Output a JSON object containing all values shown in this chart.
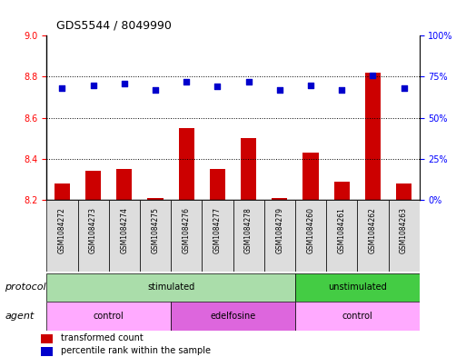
{
  "title": "GDS5544 / 8049990",
  "samples": [
    "GSM1084272",
    "GSM1084273",
    "GSM1084274",
    "GSM1084275",
    "GSM1084276",
    "GSM1084277",
    "GSM1084278",
    "GSM1084279",
    "GSM1084260",
    "GSM1084261",
    "GSM1084262",
    "GSM1084263"
  ],
  "bar_values": [
    8.28,
    8.34,
    8.35,
    8.21,
    8.55,
    8.35,
    8.5,
    8.21,
    8.43,
    8.29,
    8.82,
    8.28
  ],
  "scatter_values": [
    68,
    70,
    71,
    67,
    72,
    69,
    72,
    67,
    70,
    67,
    76,
    68
  ],
  "ylim_left": [
    8.2,
    9.0
  ],
  "ylim_right": [
    0,
    100
  ],
  "yticks_left": [
    8.2,
    8.4,
    8.6,
    8.8,
    9.0
  ],
  "yticks_right": [
    0,
    25,
    50,
    75,
    100
  ],
  "ytick_labels_right": [
    "0%",
    "25%",
    "50%",
    "75%",
    "100%"
  ],
  "bar_color": "#cc0000",
  "scatter_color": "#0000cc",
  "bar_bottom": 8.2,
  "protocol_labels": [
    {
      "label": "stimulated",
      "start": 0,
      "end": 8,
      "color": "#aaddaa"
    },
    {
      "label": "unstimulated",
      "start": 8,
      "end": 12,
      "color": "#44cc44"
    }
  ],
  "agent_labels": [
    {
      "label": "control",
      "start": 0,
      "end": 4,
      "color": "#ffaaff"
    },
    {
      "label": "edelfosine",
      "start": 4,
      "end": 8,
      "color": "#dd66dd"
    },
    {
      "label": "control",
      "start": 8,
      "end": 12,
      "color": "#ffaaff"
    }
  ],
  "protocol_row_label": "protocol",
  "agent_row_label": "agent",
  "legend_items": [
    {
      "label": "transformed count",
      "color": "#cc0000"
    },
    {
      "label": "percentile rank within the sample",
      "color": "#0000cc"
    }
  ]
}
